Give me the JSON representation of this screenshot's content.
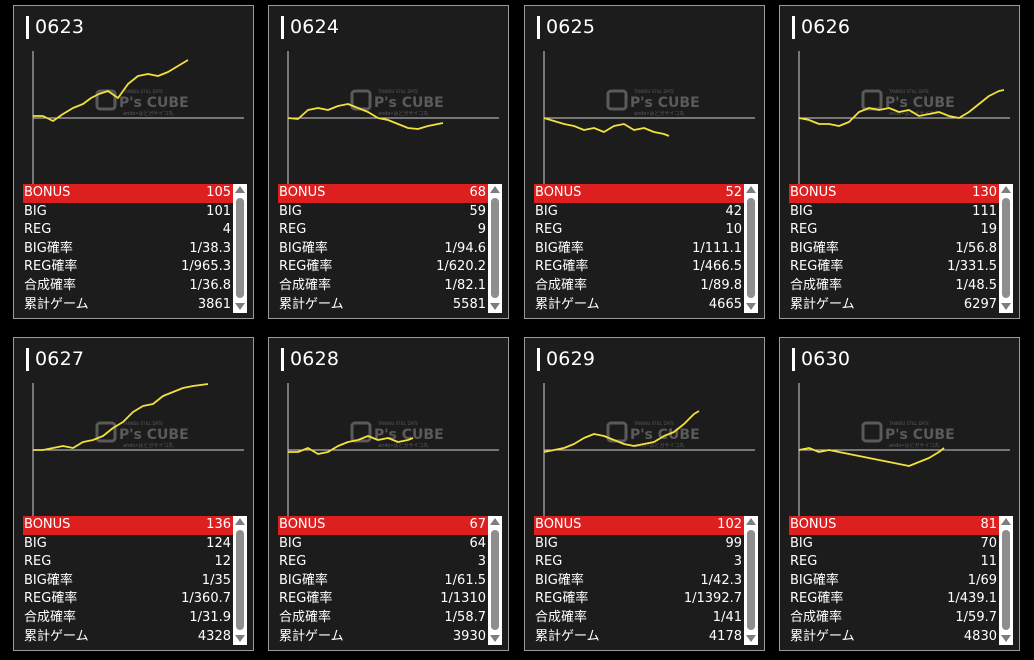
{
  "labels": {
    "bonus": "BONUS",
    "big": "BIG",
    "reg": "REG",
    "big_rate": "BIG確率",
    "reg_rate": "REG確率",
    "total_rate": "合成確率",
    "games": "累計ゲーム"
  },
  "watermark": {
    "brand": "P's CUBE",
    "top": "TANNSU STILL DATE",
    "bottom": "ando•はどガサイコ丸"
  },
  "colors": {
    "accent_red": "#dd1f1f",
    "graph_line": "#f2e13c",
    "card_bg": "#1c1c1c"
  },
  "cards": [
    {
      "id": "0623",
      "bonus": "105",
      "big": "101",
      "reg": "4",
      "big_rate": "1/38.3",
      "reg_rate": "1/965.3",
      "total_rate": "1/36.8",
      "games": "3861"
    },
    {
      "id": "0624",
      "bonus": "68",
      "big": "59",
      "reg": "9",
      "big_rate": "1/94.6",
      "reg_rate": "1/620.2",
      "total_rate": "1/82.1",
      "games": "5581"
    },
    {
      "id": "0625",
      "bonus": "52",
      "big": "42",
      "reg": "10",
      "big_rate": "1/111.1",
      "reg_rate": "1/466.5",
      "total_rate": "1/89.8",
      "games": "4665"
    },
    {
      "id": "0626",
      "bonus": "130",
      "big": "111",
      "reg": "19",
      "big_rate": "1/56.8",
      "reg_rate": "1/331.5",
      "total_rate": "1/48.5",
      "games": "6297"
    },
    {
      "id": "0627",
      "bonus": "136",
      "big": "124",
      "reg": "12",
      "big_rate": "1/35",
      "reg_rate": "1/360.7",
      "total_rate": "1/31.9",
      "games": "4328"
    },
    {
      "id": "0628",
      "bonus": "67",
      "big": "64",
      "reg": "3",
      "big_rate": "1/61.5",
      "reg_rate": "1/1310",
      "total_rate": "1/58.7",
      "games": "3930"
    },
    {
      "id": "0629",
      "bonus": "102",
      "big": "99",
      "reg": "3",
      "big_rate": "1/42.3",
      "reg_rate": "1/1392.7",
      "total_rate": "1/41",
      "games": "4178"
    },
    {
      "id": "0630",
      "bonus": "81",
      "big": "70",
      "reg": "11",
      "big_rate": "1/69",
      "reg_rate": "1/439.1",
      "total_rate": "1/59.7",
      "games": "4830"
    }
  ]
}
